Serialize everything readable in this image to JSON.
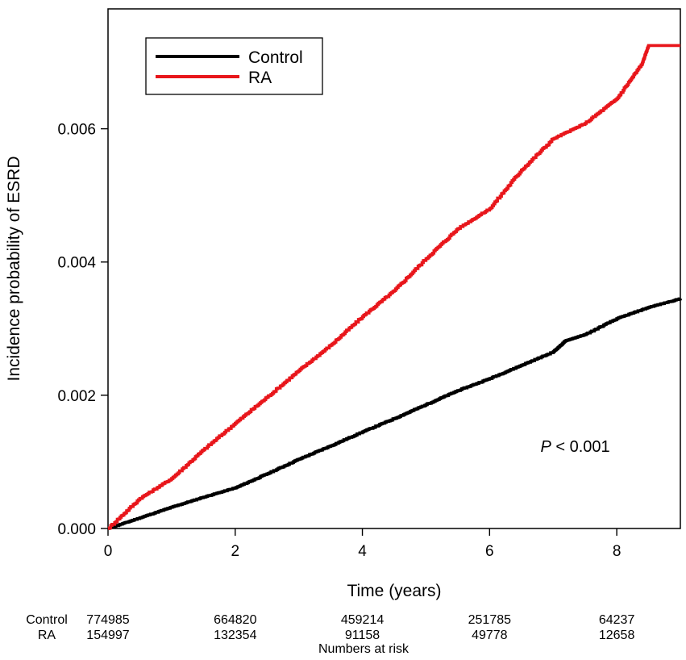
{
  "chart_data": {
    "type": "line",
    "title": "",
    "xlabel": "Time (years)",
    "ylabel": "Incidence probability of ESRD",
    "xlim": [
      0,
      9
    ],
    "ylim": [
      0,
      0.0078
    ],
    "x_ticks": [
      0,
      2,
      4,
      6,
      8
    ],
    "x_tick_labels": [
      "0",
      "2",
      "4",
      "6",
      "8"
    ],
    "y_ticks": [
      0,
      0.002,
      0.004,
      0.006
    ],
    "y_tick_labels": [
      "0.000",
      "0.002",
      "0.004",
      "0.006"
    ],
    "grid": false,
    "legend_position": "top-left",
    "series": [
      {
        "name": "Control",
        "color": "#000000",
        "x": [
          0,
          0.5,
          1,
          1.5,
          2,
          2.5,
          3,
          3.5,
          4,
          4.5,
          5,
          5.5,
          6,
          6.5,
          7,
          7.2,
          7.5,
          8,
          8.5,
          9
        ],
        "y": [
          0,
          0.00016,
          0.00032,
          0.00047,
          0.00061,
          0.00082,
          0.00104,
          0.00124,
          0.00145,
          0.00165,
          0.00186,
          0.00207,
          0.00225,
          0.00245,
          0.00265,
          0.00282,
          0.00291,
          0.00315,
          0.00332,
          0.00345
        ]
      },
      {
        "name": "RA",
        "color": "#e8161b",
        "x": [
          0,
          0.5,
          1,
          1.5,
          2,
          2.5,
          3,
          3.5,
          4,
          4.5,
          5,
          5.5,
          6,
          6.5,
          7,
          7.5,
          8,
          8.4,
          8.5,
          9
        ],
        "y": [
          0,
          0.00045,
          0.00075,
          0.00118,
          0.00158,
          0.00197,
          0.00237,
          0.00275,
          0.00318,
          0.00357,
          0.00405,
          0.0045,
          0.0048,
          0.00538,
          0.00585,
          0.00608,
          0.00645,
          0.00698,
          0.00725,
          0.00725
        ]
      }
    ],
    "annotation": {
      "italic": "P",
      "text": " < 0.001",
      "x": 6.8,
      "y": 0.00115
    },
    "risk_table": {
      "title": "Numbers at risk",
      "times": [
        0,
        2,
        4,
        6,
        8
      ],
      "rows": [
        {
          "label": "Control",
          "values": [
            "774985",
            "664820",
            "459214",
            "251785",
            "64237"
          ]
        },
        {
          "label": "RA",
          "values": [
            "154997",
            "132354",
            "91158",
            "49778",
            "12658"
          ]
        }
      ]
    }
  }
}
